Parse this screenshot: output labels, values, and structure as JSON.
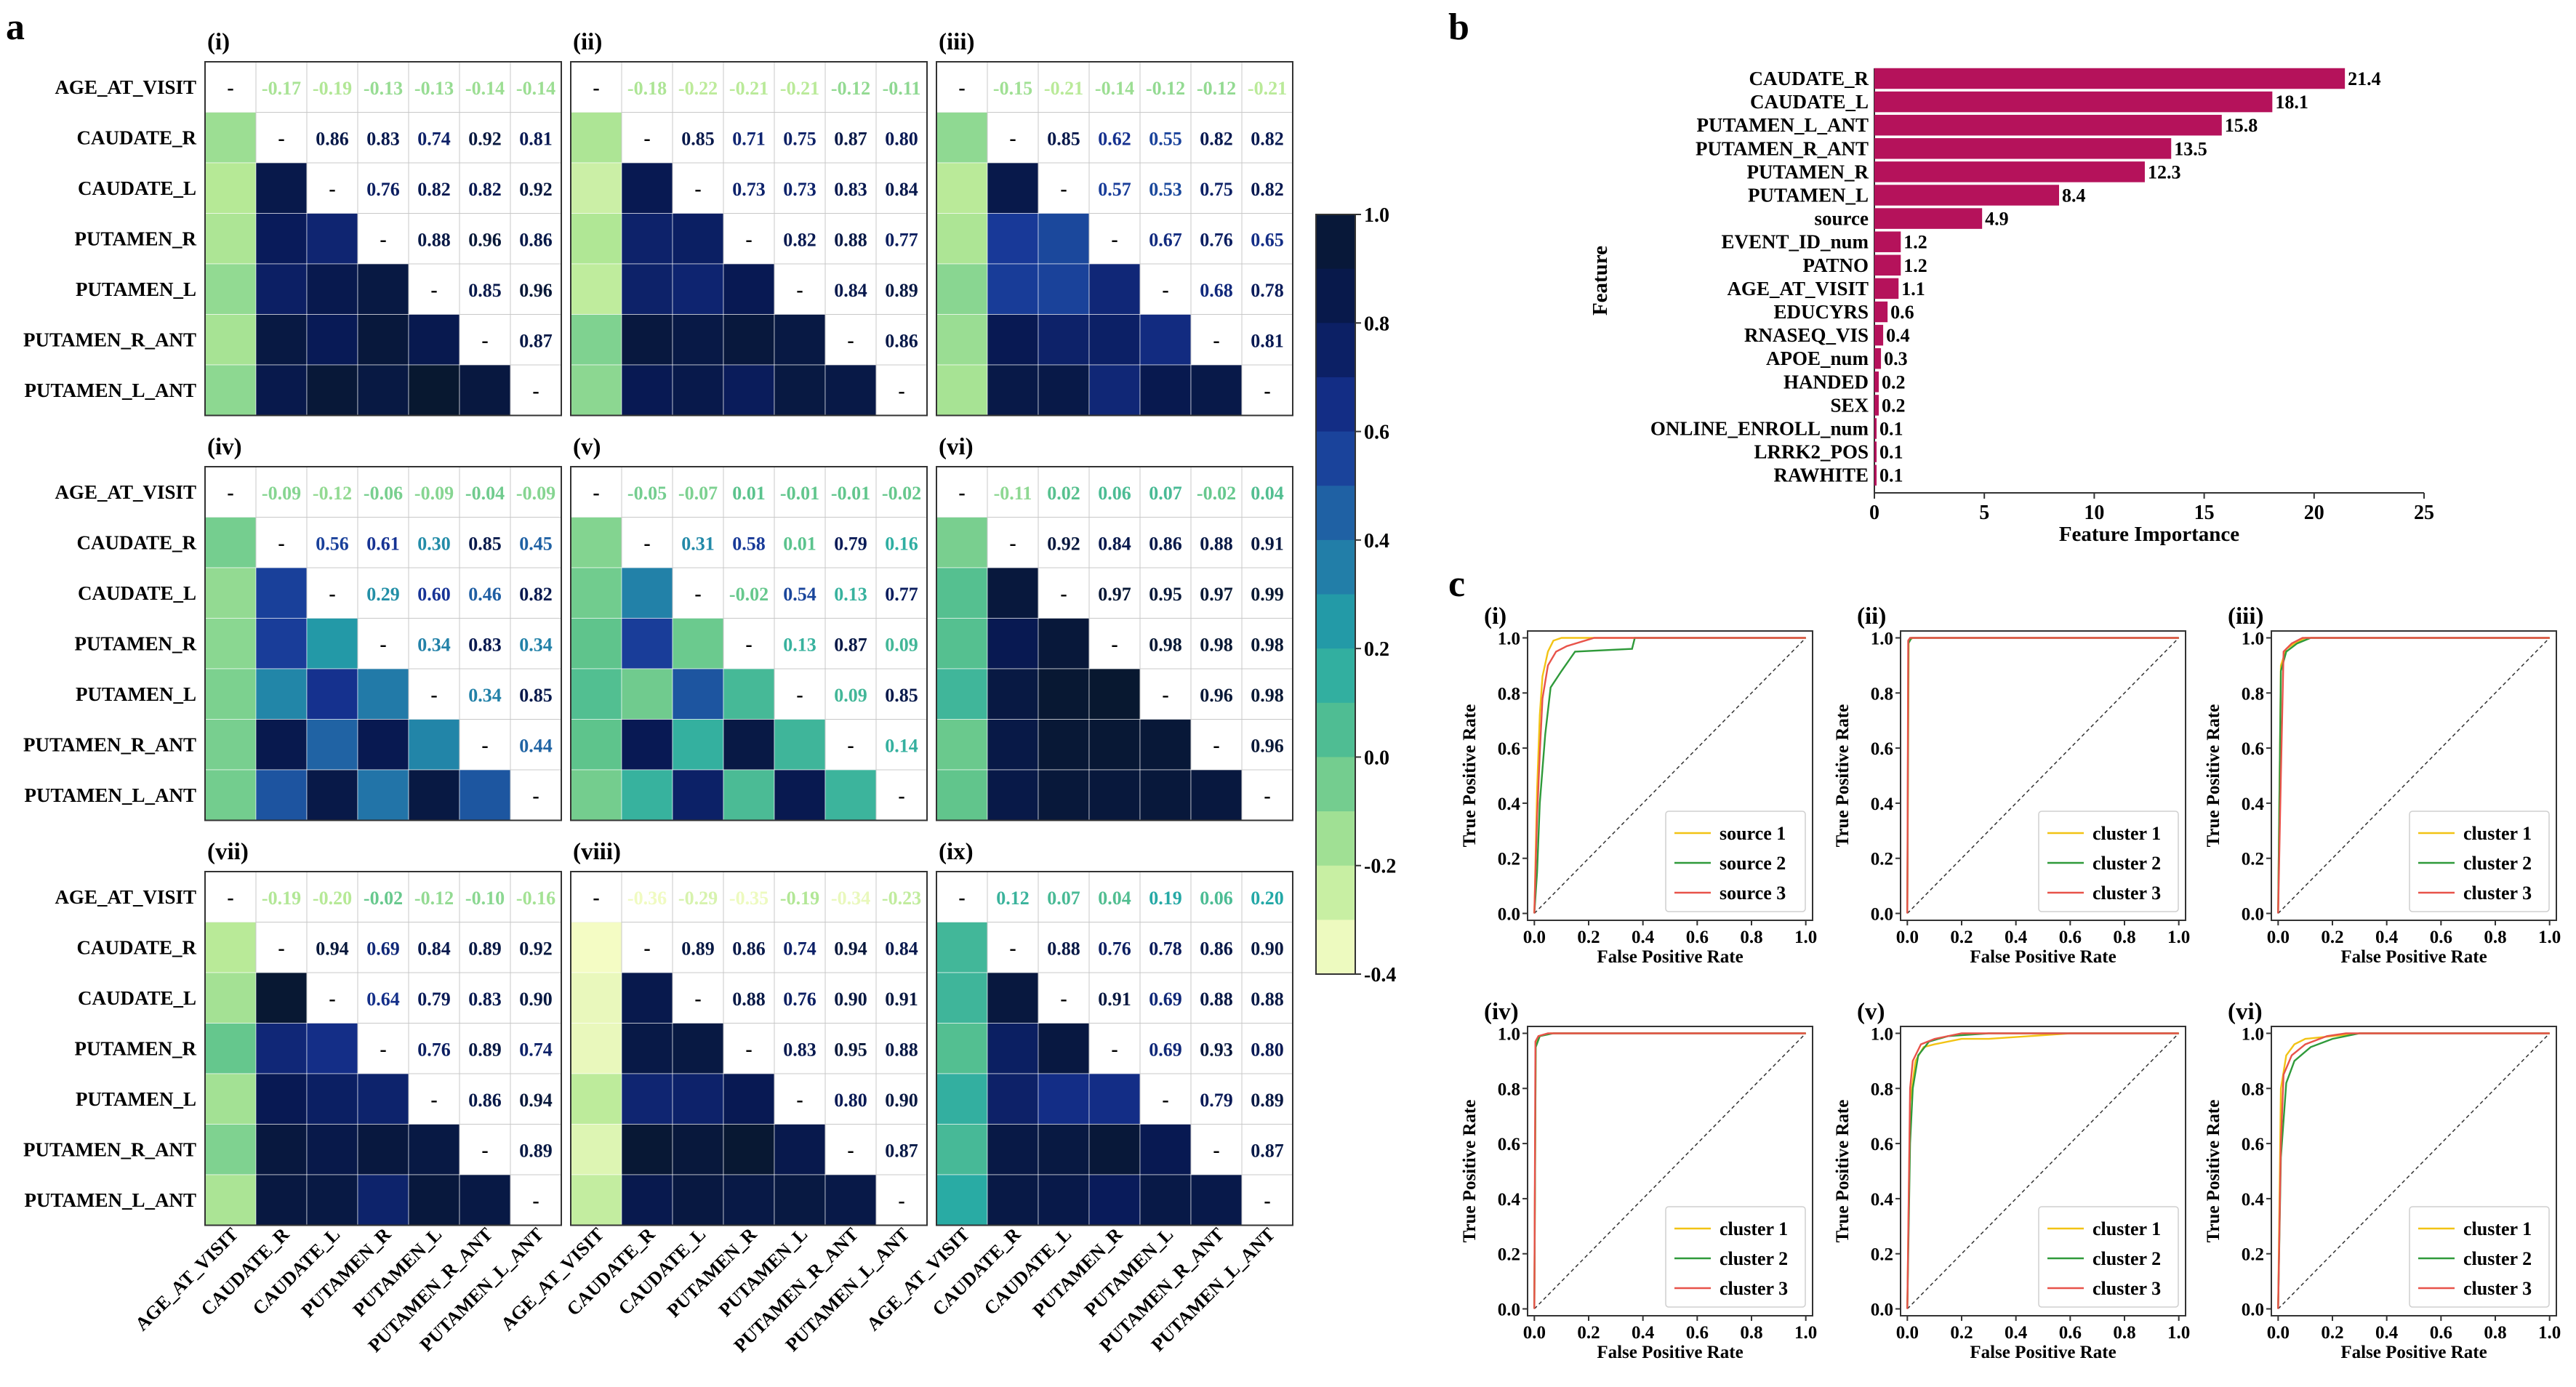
{
  "figure": {
    "panel_labels": {
      "a": "a",
      "b": "b",
      "c": "c"
    },
    "sub_labels": [
      "(i)",
      "(ii)",
      "(iii)",
      "(iv)",
      "(v)",
      "(vi)",
      "(vii)",
      "(viii)",
      "(ix)"
    ],
    "colors": {
      "bar": "#b5125b",
      "roc_1": "#f2c314",
      "roc_2": "#2f9a3a",
      "roc_3": "#e8534a",
      "grid": "#9a9a9a"
    }
  },
  "chart_data": [
    {
      "type": "heatmap",
      "panel": "a",
      "labels": [
        "AGE_AT_VISIT",
        "CAUDATE_R",
        "CAUDATE_L",
        "PUTAMEN_R",
        "PUTAMEN_L",
        "PUTAMEN_R_ANT",
        "PUTAMEN_L_ANT"
      ],
      "diagonal_text": "-",
      "colorbar": {
        "min": -0.4,
        "max": 1.0,
        "ticks": [
          "1.0",
          "0.8",
          "0.6",
          "0.4",
          "0.2",
          "0.0",
          "-0.2",
          "-0.4"
        ],
        "tick_values": [
          1.0,
          0.8,
          0.6,
          0.4,
          0.2,
          0.0,
          -0.2,
          -0.4
        ]
      },
      "subplots": [
        {
          "label": "(i)",
          "upper": [
            [
              "-0.17",
              "-0.19",
              "-0.13",
              "-0.13",
              "-0.14",
              "-0.14"
            ],
            [
              "0.86",
              "0.83",
              "0.74",
              "0.92",
              "0.81"
            ],
            [
              "0.76",
              "0.82",
              "0.82",
              "0.92"
            ],
            [
              "0.88",
              "0.96",
              "0.86"
            ],
            [
              "0.85",
              "0.96"
            ],
            [
              "0.87"
            ]
          ]
        },
        {
          "label": "(ii)",
          "upper": [
            [
              "-0.18",
              "-0.22",
              "-0.21",
              "-0.21",
              "-0.12",
              "-0.11"
            ],
            [
              "0.85",
              "0.71",
              "0.75",
              "0.87",
              "0.80"
            ],
            [
              "0.73",
              "0.73",
              "0.83",
              "0.84"
            ],
            [
              "0.82",
              "0.88",
              "0.77"
            ],
            [
              "0.84",
              "0.89"
            ],
            [
              "0.86"
            ]
          ]
        },
        {
          "label": "(iii)",
          "upper": [
            [
              "-0.15",
              "-0.21",
              "-0.14",
              "-0.12",
              "-0.12",
              "-0.21"
            ],
            [
              "0.85",
              "0.62",
              "0.55",
              "0.82",
              "0.82"
            ],
            [
              "0.57",
              "0.53",
              "0.75",
              "0.82"
            ],
            [
              "0.67",
              "0.76",
              "0.65"
            ],
            [
              "0.68",
              "0.78"
            ],
            [
              "0.81"
            ]
          ]
        },
        {
          "label": "(iv)",
          "upper": [
            [
              "-0.09",
              "-0.12",
              "-0.06",
              "-0.09",
              "-0.04",
              "-0.09"
            ],
            [
              "0.56",
              "0.61",
              "0.30",
              "0.85",
              "0.45"
            ],
            [
              "0.29",
              "0.60",
              "0.46",
              "0.82"
            ],
            [
              "0.34",
              "0.83",
              "0.34"
            ],
            [
              "0.34",
              "0.85"
            ],
            [
              "0.44"
            ]
          ]
        },
        {
          "label": "(v)",
          "upper": [
            [
              "-0.05",
              "-0.07",
              "0.01",
              "-0.01",
              "-0.01",
              "-0.02"
            ],
            [
              "0.31",
              "0.58",
              "0.01",
              "0.79",
              "0.16"
            ],
            [
              "-0.02",
              "0.54",
              "0.13",
              "0.77"
            ],
            [
              "0.13",
              "0.87",
              "0.09"
            ],
            [
              "0.09",
              "0.85"
            ],
            [
              "0.14"
            ]
          ]
        },
        {
          "label": "(vi)",
          "upper": [
            [
              "-0.11",
              "0.02",
              "0.06",
              "0.07",
              "-0.02",
              "0.04"
            ],
            [
              "0.92",
              "0.84",
              "0.86",
              "0.88",
              "0.91"
            ],
            [
              "0.97",
              "0.95",
              "0.97",
              "0.99"
            ],
            [
              "0.98",
              "0.98",
              "0.98"
            ],
            [
              "0.96",
              "0.98"
            ],
            [
              "0.96"
            ]
          ]
        },
        {
          "label": "(vii)",
          "upper": [
            [
              "-0.19",
              "-0.20",
              "-0.02",
              "-0.12",
              "-0.10",
              "-0.16"
            ],
            [
              "0.94",
              "0.69",
              "0.84",
              "0.89",
              "0.92"
            ],
            [
              "0.64",
              "0.79",
              "0.83",
              "0.90"
            ],
            [
              "0.76",
              "0.89",
              "0.74"
            ],
            [
              "0.86",
              "0.94"
            ],
            [
              "0.89"
            ]
          ]
        },
        {
          "label": "(viii)",
          "upper": [
            [
              "-0.36",
              "-0.29",
              "-0.35",
              "-0.19",
              "-0.34",
              "-0.23"
            ],
            [
              "0.89",
              "0.86",
              "0.74",
              "0.94",
              "0.84"
            ],
            [
              "0.88",
              "0.76",
              "0.90",
              "0.91"
            ],
            [
              "0.83",
              "0.95",
              "0.88"
            ],
            [
              "0.80",
              "0.90"
            ],
            [
              "0.87"
            ]
          ]
        },
        {
          "label": "(ix)",
          "upper": [
            [
              "0.12",
              "0.07",
              "0.04",
              "0.19",
              "0.06",
              "0.20"
            ],
            [
              "0.88",
              "0.76",
              "0.78",
              "0.86",
              "0.90"
            ],
            [
              "0.91",
              "0.69",
              "0.88",
              "0.88"
            ],
            [
              "0.69",
              "0.93",
              "0.80"
            ],
            [
              "0.79",
              "0.89"
            ],
            [
              "0.87"
            ]
          ]
        }
      ]
    },
    {
      "type": "bar",
      "panel": "b",
      "orientation": "horizontal",
      "categories": [
        "CAUDATE_R",
        "CAUDATE_L",
        "PUTAMEN_L_ANT",
        "PUTAMEN_R_ANT",
        "PUTAMEN_R",
        "PUTAMEN_L",
        "source",
        "EVENT_ID_num",
        "PATNO",
        "AGE_AT_VISIT",
        "EDUCYRS",
        "RNASEQ_VIS",
        "APOE_num",
        "HANDED",
        "SEX",
        "ONLINE_ENROLL_num",
        "LRRK2_POS",
        "RAWHITE"
      ],
      "values": [
        21.4,
        18.1,
        15.8,
        13.5,
        12.3,
        8.4,
        4.9,
        1.2,
        1.2,
        1.1,
        0.6,
        0.4,
        0.3,
        0.2,
        0.2,
        0.1,
        0.1,
        0.1
      ],
      "value_labels": [
        "21.4",
        "18.1",
        "15.8",
        "13.5",
        "12.3",
        "8.4",
        "4.9",
        "1.2",
        "1.2",
        "1.1",
        "0.6",
        "0.4",
        "0.3",
        "0.2",
        "0.2",
        "0.1",
        "0.1",
        "0.1"
      ],
      "xlabel": "Feature Importance",
      "ylabel": "Feature",
      "xlim": [
        0,
        25
      ],
      "xticks": [
        0,
        5,
        10,
        15,
        20,
        25
      ],
      "xtick_labels": [
        "0",
        "5",
        "10",
        "15",
        "20",
        "25"
      ]
    },
    {
      "type": "line",
      "panel": "c",
      "xlabel": "False Positive Rate",
      "ylabel": "True Positive Rate",
      "xlim": [
        0,
        1
      ],
      "ylim": [
        0,
        1
      ],
      "tick_labels": [
        "0.0",
        "0.2",
        "0.4",
        "0.6",
        "0.8",
        "1.0"
      ],
      "tick_values": [
        0,
        0.2,
        0.4,
        0.6,
        0.8,
        1.0
      ],
      "subplots": [
        {
          "label": "(i)",
          "legend": [
            "source 1",
            "source 2",
            "source 3"
          ],
          "series": [
            {
              "name": "source 1",
              "x": [
                0,
                0.01,
                0.02,
                0.03,
                0.05,
                0.07,
                0.1,
                0.2,
                1
              ],
              "y": [
                0,
                0.45,
                0.72,
                0.86,
                0.95,
                0.99,
                1,
                1,
                1
              ]
            },
            {
              "name": "source 2",
              "x": [
                0,
                0.01,
                0.02,
                0.04,
                0.06,
                0.1,
                0.15,
                0.36,
                0.37,
                1
              ],
              "y": [
                0,
                0.15,
                0.4,
                0.65,
                0.82,
                0.88,
                0.95,
                0.96,
                1,
                1
              ]
            },
            {
              "name": "source 3",
              "x": [
                0,
                0.01,
                0.02,
                0.03,
                0.05,
                0.08,
                0.12,
                0.22,
                1
              ],
              "y": [
                0,
                0.35,
                0.58,
                0.78,
                0.9,
                0.95,
                0.97,
                1,
                1
              ]
            }
          ]
        },
        {
          "label": "(ii)",
          "legend": [
            "cluster 1",
            "cluster 2",
            "cluster 3"
          ],
          "series": [
            {
              "name": "cluster 1",
              "x": [
                0,
                0.005,
                0.02,
                1
              ],
              "y": [
                0,
                0.99,
                1,
                1
              ]
            },
            {
              "name": "cluster 2",
              "x": [
                0,
                0.004,
                0.015,
                1
              ],
              "y": [
                0,
                0.98,
                1,
                1
              ]
            },
            {
              "name": "cluster 3",
              "x": [
                0,
                0.003,
                0.01,
                1
              ],
              "y": [
                0,
                0.99,
                1,
                1
              ]
            }
          ]
        },
        {
          "label": "(iii)",
          "legend": [
            "cluster 1",
            "cluster 2",
            "cluster 3"
          ],
          "series": [
            {
              "name": "cluster 1",
              "x": [
                0,
                0.01,
                0.03,
                0.06,
                0.1,
                1
              ],
              "y": [
                0,
                0.9,
                0.96,
                0.98,
                1,
                1
              ]
            },
            {
              "name": "cluster 2",
              "x": [
                0,
                0.01,
                0.03,
                0.07,
                0.12,
                1
              ],
              "y": [
                0,
                0.88,
                0.95,
                0.98,
                1,
                1
              ]
            },
            {
              "name": "cluster 3",
              "x": [
                0,
                0.01,
                0.02,
                0.05,
                0.09,
                1
              ],
              "y": [
                0,
                0.5,
                0.95,
                0.98,
                1,
                1
              ]
            }
          ]
        },
        {
          "label": "(iv)",
          "legend": [
            "cluster 1",
            "cluster 2",
            "cluster 3"
          ],
          "series": [
            {
              "name": "cluster 1",
              "x": [
                0,
                0.005,
                0.02,
                0.06,
                1
              ],
              "y": [
                0,
                0.96,
                0.99,
                1,
                1
              ]
            },
            {
              "name": "cluster 2",
              "x": [
                0,
                0.005,
                0.02,
                0.07,
                1
              ],
              "y": [
                0,
                0.95,
                0.99,
                1,
                1
              ]
            },
            {
              "name": "cluster 3",
              "x": [
                0,
                0.004,
                0.015,
                0.05,
                1
              ],
              "y": [
                0,
                0.97,
                0.99,
                1,
                1
              ]
            }
          ]
        },
        {
          "label": "(v)",
          "legend": [
            "cluster 1",
            "cluster 2",
            "cluster 3"
          ],
          "series": [
            {
              "name": "cluster 1",
              "x": [
                0,
                0.01,
                0.03,
                0.06,
                0.1,
                0.2,
                0.3,
                0.6,
                1
              ],
              "y": [
                0,
                0.75,
                0.9,
                0.95,
                0.96,
                0.98,
                0.98,
                1,
                1
              ]
            },
            {
              "name": "cluster 2",
              "x": [
                0,
                0.01,
                0.02,
                0.04,
                0.08,
                0.15,
                0.3,
                1
              ],
              "y": [
                0,
                0.6,
                0.8,
                0.92,
                0.97,
                0.99,
                1,
                1
              ]
            },
            {
              "name": "cluster 3",
              "x": [
                0,
                0.01,
                0.02,
                0.05,
                0.1,
                0.2,
                1
              ],
              "y": [
                0,
                0.8,
                0.9,
                0.96,
                0.98,
                1,
                1
              ]
            }
          ]
        },
        {
          "label": "(vi)",
          "legend": [
            "cluster 1",
            "cluster 2",
            "cluster 3"
          ],
          "series": [
            {
              "name": "cluster 1",
              "x": [
                0,
                0.01,
                0.03,
                0.06,
                0.1,
                0.2,
                0.3,
                1
              ],
              "y": [
                0,
                0.8,
                0.92,
                0.96,
                0.98,
                0.99,
                1,
                1
              ]
            },
            {
              "name": "cluster 2",
              "x": [
                0,
                0.01,
                0.03,
                0.06,
                0.12,
                0.2,
                0.3,
                1
              ],
              "y": [
                0,
                0.55,
                0.82,
                0.9,
                0.95,
                0.98,
                1,
                1
              ]
            },
            {
              "name": "cluster 3",
              "x": [
                0,
                0.01,
                0.02,
                0.05,
                0.1,
                0.18,
                0.25,
                1
              ],
              "y": [
                0,
                0.6,
                0.85,
                0.92,
                0.96,
                0.99,
                1,
                1
              ]
            }
          ]
        }
      ]
    }
  ]
}
